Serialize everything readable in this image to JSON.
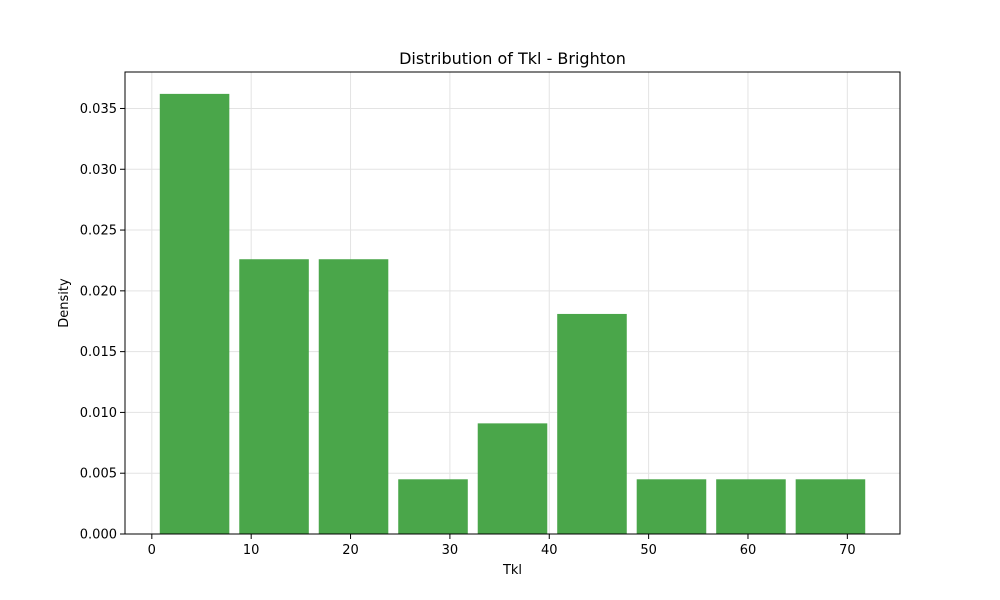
{
  "chart_data": {
    "type": "bar",
    "title": "Distribution of Tkl - Brighton",
    "xlabel": "Tkl",
    "ylabel": "Density",
    "bins": [
      {
        "x0": 0.8,
        "x1": 7.8,
        "value": 0.0362
      },
      {
        "x0": 8.8,
        "x1": 15.8,
        "value": 0.0226
      },
      {
        "x0": 16.8,
        "x1": 23.8,
        "value": 0.0226
      },
      {
        "x0": 24.8,
        "x1": 31.8,
        "value": 0.0045
      },
      {
        "x0": 32.8,
        "x1": 39.8,
        "value": 0.0091
      },
      {
        "x0": 40.8,
        "x1": 47.8,
        "value": 0.0181
      },
      {
        "x0": 48.8,
        "x1": 55.8,
        "value": 0.0045
      },
      {
        "x0": 56.8,
        "x1": 63.8,
        "value": 0.0045
      },
      {
        "x0": 64.8,
        "x1": 71.8,
        "value": 0.0045
      }
    ],
    "xlim": [
      -2.7,
      75.3
    ],
    "ylim": [
      0,
      0.038
    ],
    "xticks": [
      0,
      10,
      20,
      30,
      40,
      50,
      60,
      70
    ],
    "yticks": [
      0.0,
      0.005,
      0.01,
      0.015,
      0.02,
      0.025,
      0.03,
      0.035
    ],
    "ytick_labels": [
      "0.000",
      "0.005",
      "0.010",
      "0.015",
      "0.020",
      "0.025",
      "0.030",
      "0.035"
    ],
    "grid": true,
    "bar_color": "#4aa64a"
  }
}
